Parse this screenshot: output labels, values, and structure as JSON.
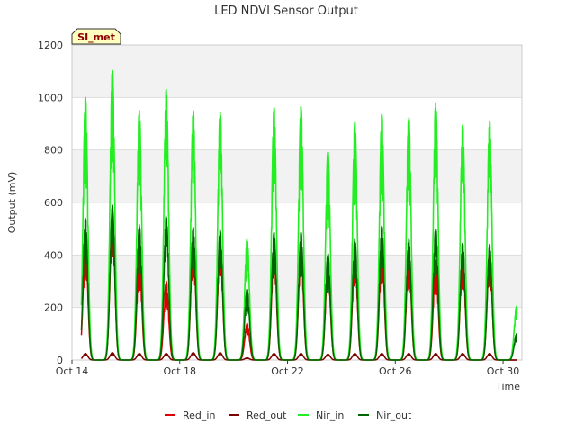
{
  "chart_data": {
    "type": "line",
    "title": "LED NDVI Sensor Output",
    "xlabel": "Time",
    "ylabel": "Output (mV)",
    "ylim": [
      0,
      1200
    ],
    "yticks": [
      0,
      200,
      400,
      600,
      800,
      1000,
      1200
    ],
    "xlim": [
      14,
      30.7
    ],
    "xticks": [
      {
        "value": 14,
        "label": "Oct 14"
      },
      {
        "value": 18,
        "label": "Oct 18"
      },
      {
        "value": 22,
        "label": "Oct 22"
      },
      {
        "value": 26,
        "label": "Oct 26"
      },
      {
        "value": 30,
        "label": "Oct 30"
      }
    ],
    "badge": "SI_met",
    "legend_position": "bottom",
    "days": [
      14,
      15,
      16,
      17,
      18,
      19,
      20,
      21,
      22,
      23,
      24,
      25,
      26,
      27,
      28,
      29,
      30
    ],
    "series": [
      {
        "name": "Red_in",
        "color": "#dd0000",
        "daily_peaks": [
          450,
          580,
          400,
          300,
          460,
          460,
          140,
          430,
          430,
          370,
          410,
          430,
          410,
          380,
          410,
          420,
          0
        ]
      },
      {
        "name": "Red_out",
        "color": "#7a0000",
        "daily_peaks": [
          25,
          28,
          25,
          25,
          28,
          28,
          8,
          25,
          25,
          22,
          25,
          25,
          25,
          25,
          25,
          25,
          0
        ]
      },
      {
        "name": "Nir_in",
        "color": "#22ee22",
        "daily_peaks": [
          1000,
          1105,
          950,
          1030,
          950,
          950,
          460,
          960,
          965,
          795,
          905,
          935,
          925,
          980,
          895,
          910,
          205
        ]
      },
      {
        "name": "Nir_out",
        "color": "#006400",
        "daily_peaks": [
          540,
          590,
          515,
          550,
          505,
          495,
          270,
          485,
          485,
          405,
          460,
          510,
          460,
          505,
          445,
          440,
          100
        ]
      }
    ]
  }
}
